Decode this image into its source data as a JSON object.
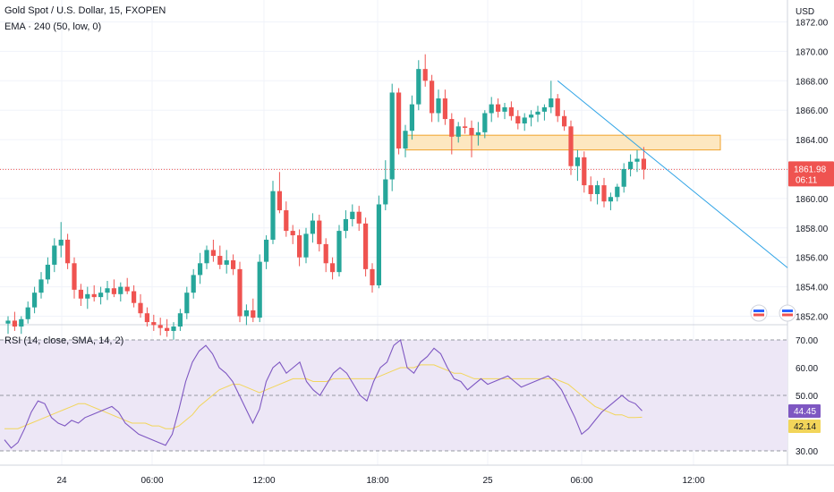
{
  "header": {
    "title": "Gold Spot / U.S. Dollar, 15, FXOPEN",
    "indicator": "EMA · 240 (50, low, 0)",
    "rsi_label": "RSI (14, close, SMA, 14, 2)"
  },
  "price_axis": {
    "currency": "USD",
    "ticks": [
      "1872.00",
      "1870.00",
      "1868.00",
      "1866.00",
      "1864.00",
      "1862.00",
      "1860.00",
      "1858.00",
      "1856.00",
      "1854.00",
      "1852.00"
    ],
    "tick_values": [
      1872,
      1870,
      1868,
      1866,
      1864,
      1862,
      1860,
      1858,
      1856,
      1854,
      1852
    ],
    "current_price": "1861.98",
    "countdown": "06:11",
    "current_price_value": 1861.98
  },
  "rsi_axis": {
    "ticks": [
      "70.00",
      "60.00",
      "50.00",
      "30.00"
    ],
    "tick_values": [
      70,
      60,
      50,
      30
    ],
    "rsi_value": "44.45",
    "sma_value": "42.14"
  },
  "time_axis": {
    "labels": [
      "24",
      "06:00",
      "12:00",
      "18:00",
      "25",
      "06:00",
      "12:00"
    ]
  },
  "colors": {
    "up": "#26a69a",
    "down": "#ef5350",
    "rsi": "#7e57c2",
    "rsi_sma": "#f2d55a",
    "trendline": "#2ea3e6",
    "zone_fill": "#fde7c0",
    "zone_border": "#f0a22a",
    "price_line": "#ef5350",
    "rsi_band": "#ede7f6"
  },
  "chart_data": {
    "type": "candlestick",
    "title": "Gold Spot / U.S. Dollar, 15, FXOPEN",
    "ylim": [
      1851,
      1873
    ],
    "y_ticks": [
      1852,
      1854,
      1856,
      1858,
      1860,
      1862,
      1864,
      1866,
      1868,
      1870,
      1872
    ],
    "candles": [
      [
        1851.5,
        1852.0,
        1850.8,
        1851.7
      ],
      [
        1851.7,
        1852.3,
        1851.0,
        1851.3
      ],
      [
        1851.3,
        1852.0,
        1850.8,
        1851.8
      ],
      [
        1851.8,
        1853.0,
        1851.5,
        1852.6
      ],
      [
        1852.6,
        1854.0,
        1852.2,
        1853.6
      ],
      [
        1853.6,
        1855.0,
        1853.2,
        1854.5
      ],
      [
        1854.5,
        1856.0,
        1854.2,
        1855.5
      ],
      [
        1855.5,
        1857.3,
        1855.0,
        1856.8
      ],
      [
        1856.8,
        1858.4,
        1856.0,
        1857.2
      ],
      [
        1857.2,
        1857.6,
        1855.2,
        1855.6
      ],
      [
        1855.6,
        1856.0,
        1853.2,
        1853.8
      ],
      [
        1853.8,
        1854.2,
        1852.7,
        1853.2
      ],
      [
        1853.2,
        1854.0,
        1852.5,
        1853.5
      ],
      [
        1853.5,
        1854.1,
        1853.0,
        1853.3
      ],
      [
        1853.3,
        1854.0,
        1852.8,
        1853.6
      ],
      [
        1853.6,
        1854.4,
        1853.1,
        1853.9
      ],
      [
        1853.9,
        1854.5,
        1853.3,
        1853.5
      ],
      [
        1853.5,
        1854.3,
        1853.0,
        1854.0
      ],
      [
        1854.0,
        1854.6,
        1853.5,
        1853.7
      ],
      [
        1853.7,
        1854.1,
        1852.6,
        1852.9
      ],
      [
        1852.9,
        1853.5,
        1851.9,
        1852.2
      ],
      [
        1852.2,
        1852.6,
        1851.3,
        1851.6
      ],
      [
        1851.6,
        1852.1,
        1851.0,
        1851.4
      ],
      [
        1851.4,
        1851.9,
        1850.7,
        1851.2
      ],
      [
        1851.2,
        1851.8,
        1850.6,
        1851.0
      ],
      [
        1851.0,
        1851.6,
        1850.4,
        1851.3
      ],
      [
        1851.3,
        1852.5,
        1851.0,
        1852.2
      ],
      [
        1852.2,
        1854.0,
        1851.8,
        1853.6
      ],
      [
        1853.6,
        1855.2,
        1853.2,
        1854.8
      ],
      [
        1854.8,
        1856.3,
        1854.2,
        1855.6
      ],
      [
        1855.6,
        1856.8,
        1855.2,
        1856.5
      ],
      [
        1856.5,
        1857.2,
        1855.7,
        1856.1
      ],
      [
        1856.1,
        1856.8,
        1855.2,
        1855.5
      ],
      [
        1855.5,
        1856.5,
        1854.9,
        1855.8
      ],
      [
        1855.8,
        1856.2,
        1854.8,
        1855.2
      ],
      [
        1855.2,
        1855.7,
        1851.6,
        1852.0
      ],
      [
        1852.0,
        1852.8,
        1851.4,
        1852.4
      ],
      [
        1852.4,
        1853.2,
        1851.6,
        1851.9
      ],
      [
        1851.9,
        1856.2,
        1851.6,
        1855.7
      ],
      [
        1855.7,
        1857.5,
        1855.2,
        1857.2
      ],
      [
        1857.2,
        1861.2,
        1856.9,
        1860.5
      ],
      [
        1860.5,
        1861.8,
        1859.0,
        1859.2
      ],
      [
        1859.2,
        1859.8,
        1857.4,
        1857.8
      ],
      [
        1857.8,
        1858.2,
        1856.9,
        1857.5
      ],
      [
        1857.5,
        1857.9,
        1855.4,
        1856.0
      ],
      [
        1856.0,
        1858.0,
        1855.6,
        1857.6
      ],
      [
        1857.6,
        1859.0,
        1857.0,
        1858.5
      ],
      [
        1858.5,
        1858.9,
        1856.4,
        1856.9
      ],
      [
        1856.9,
        1857.3,
        1855.0,
        1855.6
      ],
      [
        1855.6,
        1856.0,
        1854.5,
        1855.0
      ],
      [
        1855.0,
        1858.2,
        1854.7,
        1857.8
      ],
      [
        1857.8,
        1859.2,
        1857.3,
        1858.6
      ],
      [
        1858.6,
        1859.6,
        1858.1,
        1859.1
      ],
      [
        1859.1,
        1859.5,
        1857.8,
        1858.3
      ],
      [
        1858.3,
        1858.7,
        1854.7,
        1855.2
      ],
      [
        1855.2,
        1855.6,
        1853.6,
        1854.1
      ],
      [
        1854.1,
        1860.2,
        1853.9,
        1859.6
      ],
      [
        1859.6,
        1862.6,
        1859.2,
        1861.3
      ],
      [
        1861.3,
        1867.8,
        1860.5,
        1867.2
      ],
      [
        1867.2,
        1867.5,
        1863.0,
        1863.4
      ],
      [
        1863.4,
        1865.0,
        1862.8,
        1864.6
      ],
      [
        1864.6,
        1867.0,
        1864.0,
        1866.4
      ],
      [
        1866.4,
        1869.4,
        1866.0,
        1868.8
      ],
      [
        1868.8,
        1869.8,
        1867.6,
        1868.0
      ],
      [
        1868.0,
        1868.4,
        1865.2,
        1865.8
      ],
      [
        1865.8,
        1867.4,
        1865.2,
        1866.8
      ],
      [
        1866.8,
        1867.4,
        1865.0,
        1865.4
      ],
      [
        1865.4,
        1865.8,
        1863.0,
        1864.2
      ],
      [
        1864.2,
        1865.2,
        1863.8,
        1864.9
      ],
      [
        1864.9,
        1865.5,
        1864.4,
        1864.8
      ],
      [
        1864.8,
        1865.3,
        1862.8,
        1864.3
      ],
      [
        1864.3,
        1865.2,
        1863.6,
        1864.5
      ],
      [
        1864.5,
        1866.0,
        1864.1,
        1865.8
      ],
      [
        1865.8,
        1866.9,
        1865.2,
        1866.4
      ],
      [
        1866.4,
        1866.8,
        1865.5,
        1865.9
      ],
      [
        1865.9,
        1866.5,
        1865.4,
        1866.2
      ],
      [
        1866.2,
        1866.6,
        1865.3,
        1865.6
      ],
      [
        1865.6,
        1866.0,
        1864.7,
        1865.1
      ],
      [
        1865.1,
        1865.8,
        1864.6,
        1865.5
      ],
      [
        1865.5,
        1866.0,
        1864.9,
        1865.7
      ],
      [
        1865.7,
        1866.3,
        1865.2,
        1865.9
      ],
      [
        1865.9,
        1866.4,
        1865.3,
        1866.2
      ],
      [
        1866.2,
        1868.0,
        1865.8,
        1866.8
      ],
      [
        1866.8,
        1867.1,
        1865.2,
        1865.6
      ],
      [
        1865.6,
        1866.0,
        1864.6,
        1864.9
      ],
      [
        1864.9,
        1865.3,
        1861.6,
        1862.2
      ],
      [
        1862.2,
        1863.3,
        1861.2,
        1862.8
      ],
      [
        1862.8,
        1863.2,
        1860.4,
        1860.9
      ],
      [
        1860.9,
        1861.5,
        1859.8,
        1860.3
      ],
      [
        1860.3,
        1861.2,
        1859.6,
        1860.9
      ],
      [
        1860.9,
        1861.4,
        1859.4,
        1859.8
      ],
      [
        1859.8,
        1860.4,
        1859.2,
        1860.1
      ],
      [
        1860.1,
        1861.0,
        1859.8,
        1860.8
      ],
      [
        1860.8,
        1862.4,
        1860.4,
        1862.0
      ],
      [
        1862.0,
        1863.0,
        1861.5,
        1862.5
      ],
      [
        1862.5,
        1863.3,
        1861.8,
        1862.7
      ],
      [
        1862.7,
        1863.5,
        1861.3,
        1861.98
      ]
    ],
    "rsi": [
      34,
      31,
      33,
      38,
      44,
      48,
      47,
      42,
      40,
      39,
      41,
      40,
      42,
      43,
      44,
      45,
      46,
      44,
      40,
      38,
      36,
      35,
      34,
      33,
      32,
      36,
      45,
      55,
      62,
      66,
      68,
      65,
      60,
      58,
      55,
      50,
      45,
      40,
      45,
      55,
      60,
      62,
      58,
      60,
      62,
      55,
      52,
      50,
      54,
      58,
      60,
      58,
      54,
      50,
      48,
      55,
      60,
      62,
      68,
      70,
      60,
      58,
      62,
      64,
      67,
      65,
      60,
      56,
      55,
      52,
      54,
      56,
      54,
      55,
      56,
      57,
      55,
      53,
      54,
      55,
      56,
      57,
      55,
      52,
      47,
      42,
      36,
      38,
      41,
      44,
      46,
      48,
      50,
      48,
      47,
      44.45
    ],
    "rsi_sma": [
      38,
      38,
      38,
      39,
      40,
      41,
      42,
      43,
      44,
      45,
      46,
      47,
      47,
      46,
      45,
      44,
      43,
      42,
      41,
      40,
      40,
      40,
      39,
      39,
      38,
      38,
      39,
      41,
      43,
      46,
      48,
      50,
      52,
      53,
      54,
      54,
      53,
      52,
      51,
      52,
      53,
      54,
      55,
      56,
      56,
      56,
      55,
      55,
      55,
      56,
      56,
      56,
      56,
      56,
      56,
      56,
      57,
      58,
      59,
      60,
      60,
      60,
      61,
      61,
      61,
      60,
      59,
      58,
      58,
      57,
      56,
      56,
      56,
      56,
      56,
      56,
      56,
      56,
      56,
      56,
      56,
      56,
      56,
      55,
      54,
      52,
      50,
      48,
      46,
      45,
      44,
      43,
      43,
      42,
      42,
      42.14
    ],
    "zone": {
      "from": 1863.3,
      "to": 1864.3
    },
    "trendline": {
      "start_candle": 83,
      "start_price": 1868.0,
      "end_price": 1855.3
    }
  }
}
